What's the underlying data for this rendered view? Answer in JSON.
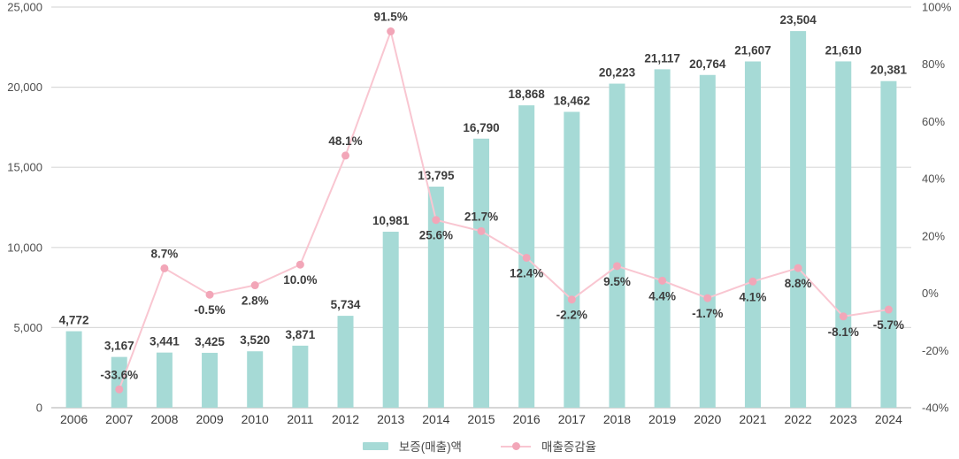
{
  "chart_data": {
    "type": "bar+line combo",
    "categories": [
      "2006",
      "2007",
      "2008",
      "2009",
      "2010",
      "2011",
      "2012",
      "2013",
      "2014",
      "2015",
      "2016",
      "2017",
      "2018",
      "2019",
      "2020",
      "2021",
      "2022",
      "2023",
      "2024"
    ],
    "series": [
      {
        "name": "보증(매출)액",
        "type": "bar",
        "axis": "left",
        "values": [
          4772,
          3167,
          3441,
          3425,
          3520,
          3871,
          5734,
          10981,
          13795,
          16790,
          18868,
          18462,
          20223,
          21117,
          20764,
          21607,
          23504,
          21610,
          20381
        ],
        "labels": [
          "4,772",
          "3,167",
          "3,441",
          "3,425",
          "3,520",
          "3,871",
          "5,734",
          "10,981",
          "13,795",
          "16,790",
          "18,868",
          "18,462",
          "20,223",
          "21,117",
          "20,764",
          "21,607",
          "23,504",
          "21,610",
          "20,381"
        ]
      },
      {
        "name": "매출증감율",
        "type": "line",
        "axis": "right",
        "values": [
          null,
          -33.6,
          8.7,
          -0.5,
          2.8,
          10.0,
          48.1,
          91.5,
          25.6,
          21.7,
          12.4,
          -2.2,
          9.5,
          4.4,
          -1.7,
          4.1,
          8.8,
          -8.1,
          -5.7
        ],
        "labels": [
          null,
          "-33.6%",
          "8.7%",
          "-0.5%",
          "2.8%",
          "10.0%",
          "48.1%",
          "91.5%",
          "25.6%",
          "21.7%",
          "12.4%",
          "-2.2%",
          "9.5%",
          "4.4%",
          "-1.7%",
          "4.1%",
          "8.8%",
          "-8.1%",
          "-5.7%"
        ],
        "label_side": [
          null,
          "above",
          "above",
          "below",
          "below",
          "below",
          "above",
          "above",
          "below",
          "above",
          "below",
          "below",
          "below",
          "below",
          "below",
          "below",
          "below",
          "below",
          "below"
        ]
      }
    ],
    "left_axis": {
      "min": 0,
      "max": 25000,
      "tick_step": 5000,
      "ticks": [
        "0",
        "5,000",
        "10,000",
        "15,000",
        "20,000",
        "25,000"
      ]
    },
    "right_axis": {
      "min": -40,
      "max": 100,
      "tick_step": 20,
      "ticks": [
        "-40%",
        "-20%",
        "0%",
        "20%",
        "40%",
        "60%",
        "80%",
        "100%"
      ]
    },
    "grid": "horizontal gridlines at left-axis ticks only",
    "legend_position": "bottom-center",
    "title": "",
    "xlabel": "",
    "ylabel": ""
  },
  "legend": {
    "bar_label": "보증(매출)액",
    "line_label": "매출증감율"
  },
  "colors": {
    "bar": "#a6dad6",
    "line": "#f9c6d1",
    "dot": "#f2a6b8",
    "grid": "#d9d9d9",
    "zero_line": "#bdbdbd",
    "value_label": "#3d3d3d",
    "axis_label": "#4f4f4f",
    "background": "#ffffff"
  }
}
